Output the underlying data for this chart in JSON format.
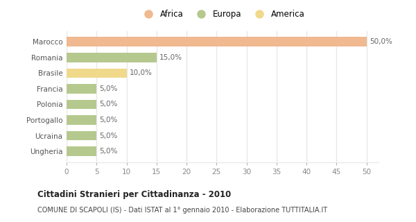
{
  "categories": [
    "Ungheria",
    "Ucraina",
    "Portogallo",
    "Polonia",
    "Francia",
    "Brasile",
    "Romania",
    "Marocco"
  ],
  "values": [
    5.0,
    5.0,
    5.0,
    5.0,
    5.0,
    10.0,
    15.0,
    50.0
  ],
  "colors": [
    "#b5c98e",
    "#b5c98e",
    "#b5c98e",
    "#b5c98e",
    "#b5c98e",
    "#f0d98a",
    "#b5c98e",
    "#f0b990"
  ],
  "legend": [
    {
      "label": "Africa",
      "color": "#f0b990"
    },
    {
      "label": "Europa",
      "color": "#b5c98e"
    },
    {
      "label": "America",
      "color": "#f0d98a"
    }
  ],
  "xlim": [
    0,
    50
  ],
  "xticks": [
    0,
    5,
    10,
    15,
    20,
    25,
    30,
    35,
    40,
    45,
    50
  ],
  "title": "Cittadini Stranieri per Cittadinanza - 2010",
  "subtitle": "COMUNE DI SCAPOLI (IS) - Dati ISTAT al 1° gennaio 2010 - Elaborazione TUTTITALIA.IT",
  "bg_color": "#ffffff",
  "plot_bg_color": "#ffffff",
  "bar_height": 0.6,
  "value_labels": [
    "5,0%",
    "5,0%",
    "5,0%",
    "5,0%",
    "5,0%",
    "10,0%",
    "15,0%",
    "50,0%"
  ],
  "grid_color": "#e8e8e8",
  "label_color": "#888888",
  "bar_label_color": "#666666",
  "ytick_color": "#555555"
}
